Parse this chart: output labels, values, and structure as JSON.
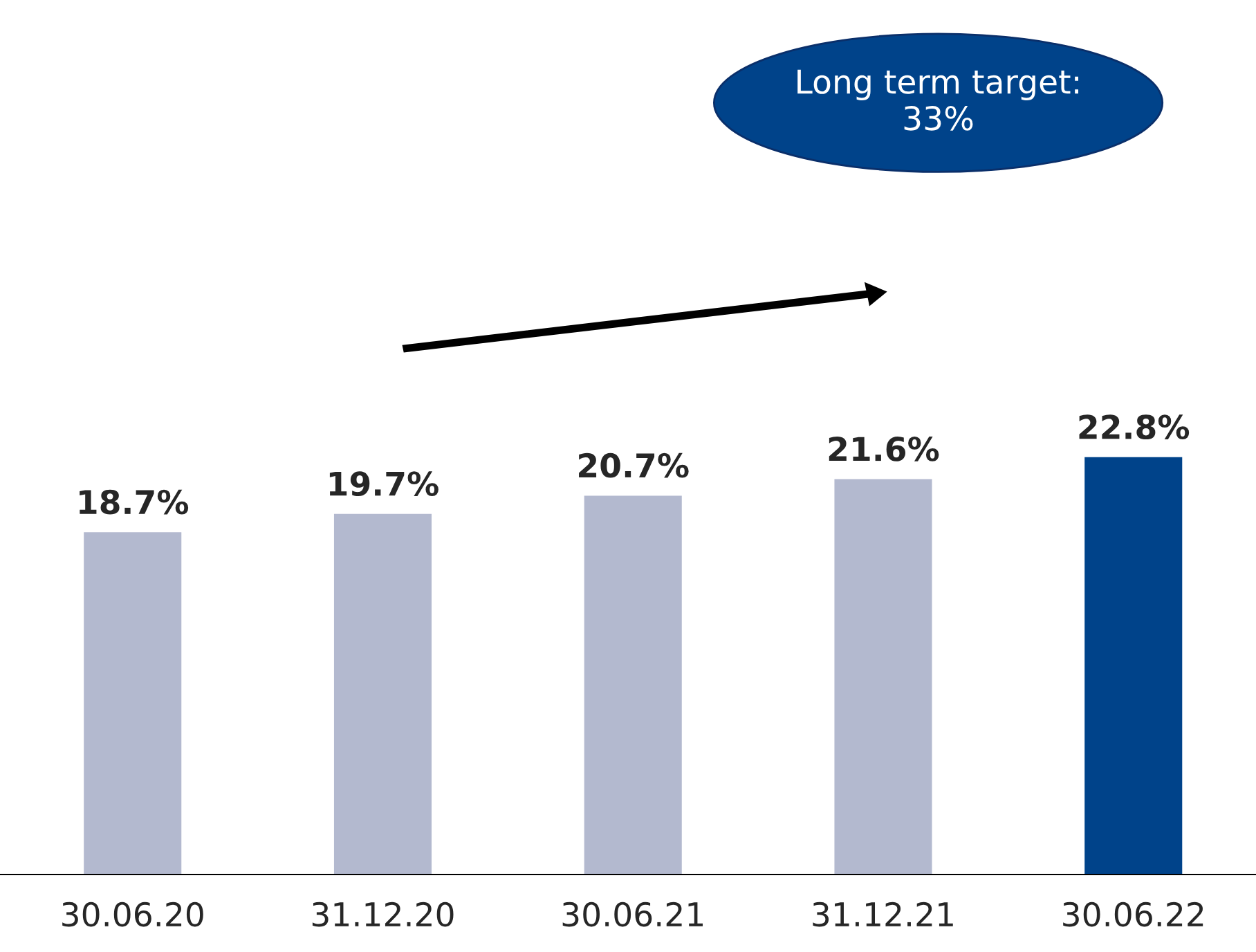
{
  "chart_data": {
    "type": "bar",
    "categories": [
      "30.06.20",
      "31.12.20",
      "30.06.21",
      "31.12.21",
      "30.06.22"
    ],
    "values": [
      18.7,
      19.7,
      20.7,
      21.6,
      22.8
    ],
    "value_labels": [
      "18.7%",
      "19.7%",
      "20.7%",
      "21.6%",
      "22.8%"
    ],
    "colors": [
      "#b3b9cf",
      "#b3b9cf",
      "#b3b9cf",
      "#b3b9cf",
      "#00438a"
    ],
    "annotations": [
      "Long term target:\n33%"
    ],
    "grid": false,
    "legend": false
  }
}
